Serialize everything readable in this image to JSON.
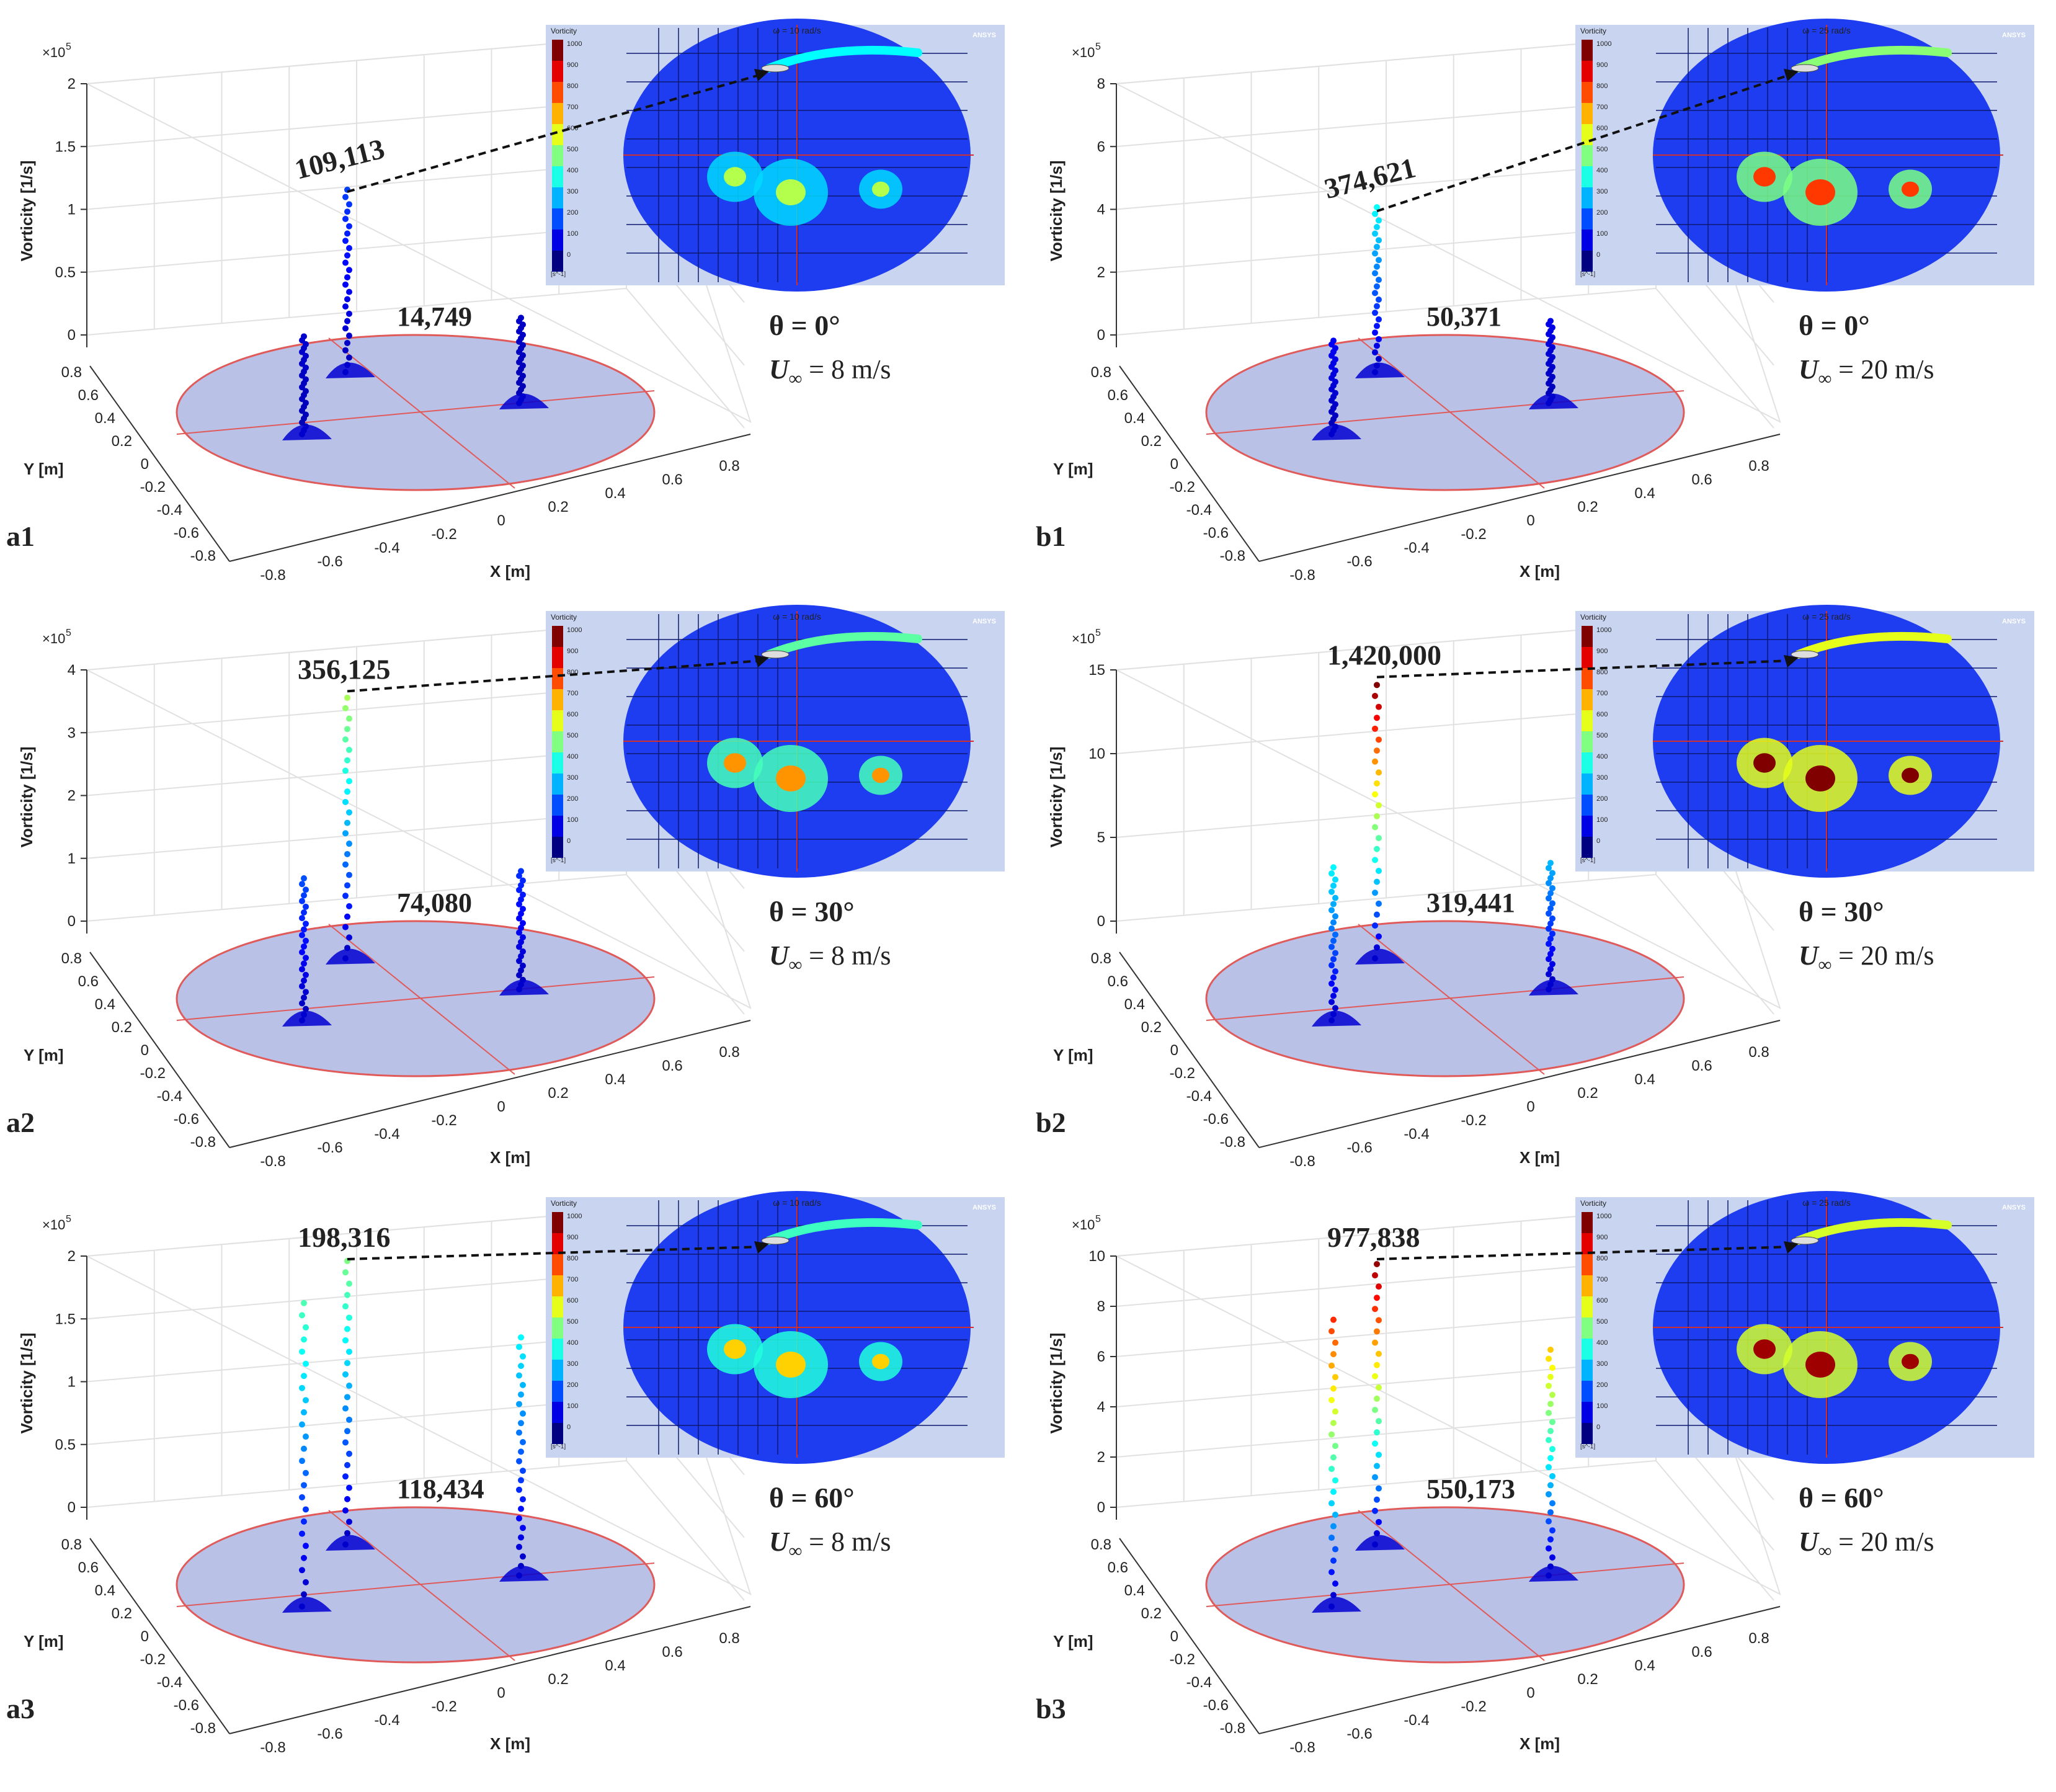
{
  "figure": {
    "description_free": true
  },
  "chart_data": [
    {
      "id": "a1",
      "type": "scatter3d",
      "panel_label": "a1",
      "z_exponent": "×10",
      "z_exponent_power": "5",
      "zlabel": "Vorticity  [1/s]",
      "xlabel": "X [m]",
      "ylabel": "Y [m]",
      "z_ticks": [
        "0",
        "0.5",
        "1",
        "1.5",
        "2"
      ],
      "z_range": [
        0,
        2
      ],
      "x_ticks": [
        "-0.8",
        "-0.6",
        "-0.4",
        "-0.2",
        "0",
        "0.2",
        "0.4",
        "0.6",
        "0.8"
      ],
      "y_ticks": [
        "0.8",
        "0.6",
        "0.4",
        "0.2",
        "0",
        "-0.2",
        "-0.4",
        "-0.6",
        "-0.8"
      ],
      "peak_label": "109,113",
      "peak_value": 109113,
      "second_label": "14,749",
      "second_value": 14749,
      "theta": "θ = 0°",
      "speed_prefix": "U",
      "speed_sub": "∞",
      "speed_value": " = 8 m/s",
      "inset": {
        "title": "ω = 10 rad/s",
        "legend_title": "Vorticity",
        "unit": "[s^-1]",
        "brand": "ANSYS",
        "ticks": [
          "1000",
          "900",
          "800",
          "700",
          "600",
          "500",
          "400",
          "300",
          "200",
          "100",
          "0"
        ]
      },
      "intensity": 0.25
    },
    {
      "id": "b1",
      "type": "scatter3d",
      "panel_label": "b1",
      "z_exponent": "×10",
      "z_exponent_power": "5",
      "zlabel": "Vorticity  [1/s]",
      "xlabel": "X [m]",
      "ylabel": "Y [m]",
      "z_ticks": [
        "0",
        "2",
        "4",
        "6",
        "8"
      ],
      "z_range": [
        0,
        8
      ],
      "x_ticks": [
        "-0.8",
        "-0.6",
        "-0.4",
        "-0.2",
        "0",
        "0.2",
        "0.4",
        "0.6",
        "0.8"
      ],
      "y_ticks": [
        "0.8",
        "0.6",
        "0.4",
        "0.2",
        "0",
        "-0.2",
        "-0.4",
        "-0.6",
        "-0.8"
      ],
      "peak_label": "374,621",
      "peak_value": 374621,
      "second_label": "50,371",
      "second_value": 50371,
      "theta": "θ = 0°",
      "speed_prefix": "U",
      "speed_sub": "∞",
      "speed_value": " = 20 m/s",
      "inset": {
        "title": "ω = 25 rad/s",
        "legend_title": "Vorticity",
        "unit": "[s^-1]",
        "brand": "ANSYS",
        "ticks": [
          "1000",
          "900",
          "800",
          "700",
          "600",
          "500",
          "400",
          "300",
          "200",
          "100",
          "0"
        ]
      },
      "intensity": 0.7
    },
    {
      "id": "a2",
      "type": "scatter3d",
      "panel_label": "a2",
      "z_exponent": "×10",
      "z_exponent_power": "5",
      "zlabel": "Vorticity  [1/s]",
      "xlabel": "X [m]",
      "ylabel": "Y [m]",
      "z_ticks": [
        "0",
        "1",
        "2",
        "3",
        "4"
      ],
      "z_range": [
        0,
        4
      ],
      "x_ticks": [
        "-0.8",
        "-0.6",
        "-0.4",
        "-0.2",
        "0",
        "0.2",
        "0.4",
        "0.6",
        "0.8"
      ],
      "y_ticks": [
        "0.8",
        "0.6",
        "0.4",
        "0.2",
        "0",
        "-0.2",
        "-0.4",
        "-0.6",
        "-0.8"
      ],
      "peak_label": "356,125",
      "peak_value": 356125,
      "second_label": "74,080",
      "second_value": 74080,
      "theta": "θ = 30°",
      "speed_prefix": "U",
      "speed_sub": "∞",
      "speed_value": " = 8 m/s",
      "inset": {
        "title": "ω = 10 rad/s",
        "legend_title": "Vorticity",
        "unit": "[s^-1]",
        "brand": "ANSYS",
        "ticks": [
          "1000",
          "900",
          "800",
          "700",
          "600",
          "500",
          "400",
          "300",
          "200",
          "100",
          "0"
        ]
      },
      "intensity": 0.55
    },
    {
      "id": "b2",
      "type": "scatter3d",
      "panel_label": "b2",
      "z_exponent": "×10",
      "z_exponent_power": "5",
      "zlabel": "Vorticity  [1/s]",
      "xlabel": "X [m]",
      "ylabel": "Y [m]",
      "z_ticks": [
        "0",
        "5",
        "10",
        "15"
      ],
      "z_range": [
        0,
        15
      ],
      "x_ticks": [
        "-0.8",
        "-0.6",
        "-0.4",
        "-0.2",
        "0",
        "0.2",
        "0.4",
        "0.6",
        "0.8"
      ],
      "y_ticks": [
        "0.8",
        "0.6",
        "0.4",
        "0.2",
        "0",
        "-0.2",
        "-0.4",
        "-0.6",
        "-0.8"
      ],
      "peak_label": "1,420,000",
      "peak_value": 1420000,
      "second_label": "319,441",
      "second_value": 319441,
      "theta": "θ = 30°",
      "speed_prefix": "U",
      "speed_sub": "∞",
      "speed_value": " = 20 m/s",
      "inset": {
        "title": "ω = 25 rad/s",
        "legend_title": "Vorticity",
        "unit": "[s^-1]",
        "brand": "ANSYS",
        "ticks": [
          "1000",
          "900",
          "800",
          "700",
          "600",
          "500",
          "400",
          "300",
          "200",
          "100",
          "0"
        ]
      },
      "intensity": 1.0
    },
    {
      "id": "a3",
      "type": "scatter3d",
      "panel_label": "a3",
      "z_exponent": "×10",
      "z_exponent_power": "5",
      "zlabel": "Vorticity  [1/s]",
      "xlabel": "X [m]",
      "ylabel": "Y [m]",
      "z_ticks": [
        "0",
        "0.5",
        "1",
        "1.5",
        "2"
      ],
      "z_range": [
        0,
        2
      ],
      "x_ticks": [
        "-0.8",
        "-0.6",
        "-0.4",
        "-0.2",
        "0",
        "0.2",
        "0.4",
        "0.6",
        "0.8"
      ],
      "y_ticks": [
        "0.8",
        "0.6",
        "0.4",
        "0.2",
        "0",
        "-0.2",
        "-0.4",
        "-0.6",
        "-0.8"
      ],
      "peak_label": "198,316",
      "peak_value": 198316,
      "second_label": "118,434",
      "second_value": 118434,
      "theta": "θ = 60°",
      "speed_prefix": "U",
      "speed_sub": "∞",
      "speed_value": " = 8 m/s",
      "inset": {
        "title": "ω = 10 rad/s",
        "legend_title": "Vorticity",
        "unit": "[s^-1]",
        "brand": "ANSYS",
        "ticks": [
          "1000",
          "900",
          "800",
          "700",
          "600",
          "500",
          "400",
          "300",
          "200",
          "100",
          "0"
        ]
      },
      "intensity": 0.45
    },
    {
      "id": "b3",
      "type": "scatter3d",
      "panel_label": "b3",
      "z_exponent": "×10",
      "z_exponent_power": "5",
      "zlabel": "Vorticity  [1/s]",
      "xlabel": "X [m]",
      "ylabel": "Y [m]",
      "z_ticks": [
        "0",
        "2",
        "4",
        "6",
        "8",
        "10"
      ],
      "z_range": [
        0,
        10
      ],
      "x_ticks": [
        "-0.8",
        "-0.6",
        "-0.4",
        "-0.2",
        "0",
        "0.2",
        "0.4",
        "0.6",
        "0.8"
      ],
      "y_ticks": [
        "0.8",
        "0.6",
        "0.4",
        "0.2",
        "0",
        "-0.2",
        "-0.4",
        "-0.6",
        "-0.8"
      ],
      "peak_label": "977,838",
      "peak_value": 977838,
      "second_label": "550,173",
      "second_value": 550173,
      "theta": "θ = 60°",
      "speed_prefix": "U",
      "speed_sub": "∞",
      "speed_value": " = 20 m/s",
      "inset": {
        "title": "ω = 25 rad/s",
        "legend_title": "Vorticity",
        "unit": "[s^-1]",
        "brand": "ANSYS",
        "ticks": [
          "1000",
          "900",
          "800",
          "700",
          "600",
          "500",
          "400",
          "300",
          "200",
          "100",
          "0"
        ]
      },
      "intensity": 0.95
    }
  ],
  "colors": {
    "disk_fill": "#b9c1e6",
    "disk_edge": "#e05a5a",
    "axis": "#333333",
    "inset_bg": "#1e3cf0",
    "inset_frame": "#c8d4f0",
    "arrow": "#111111"
  }
}
